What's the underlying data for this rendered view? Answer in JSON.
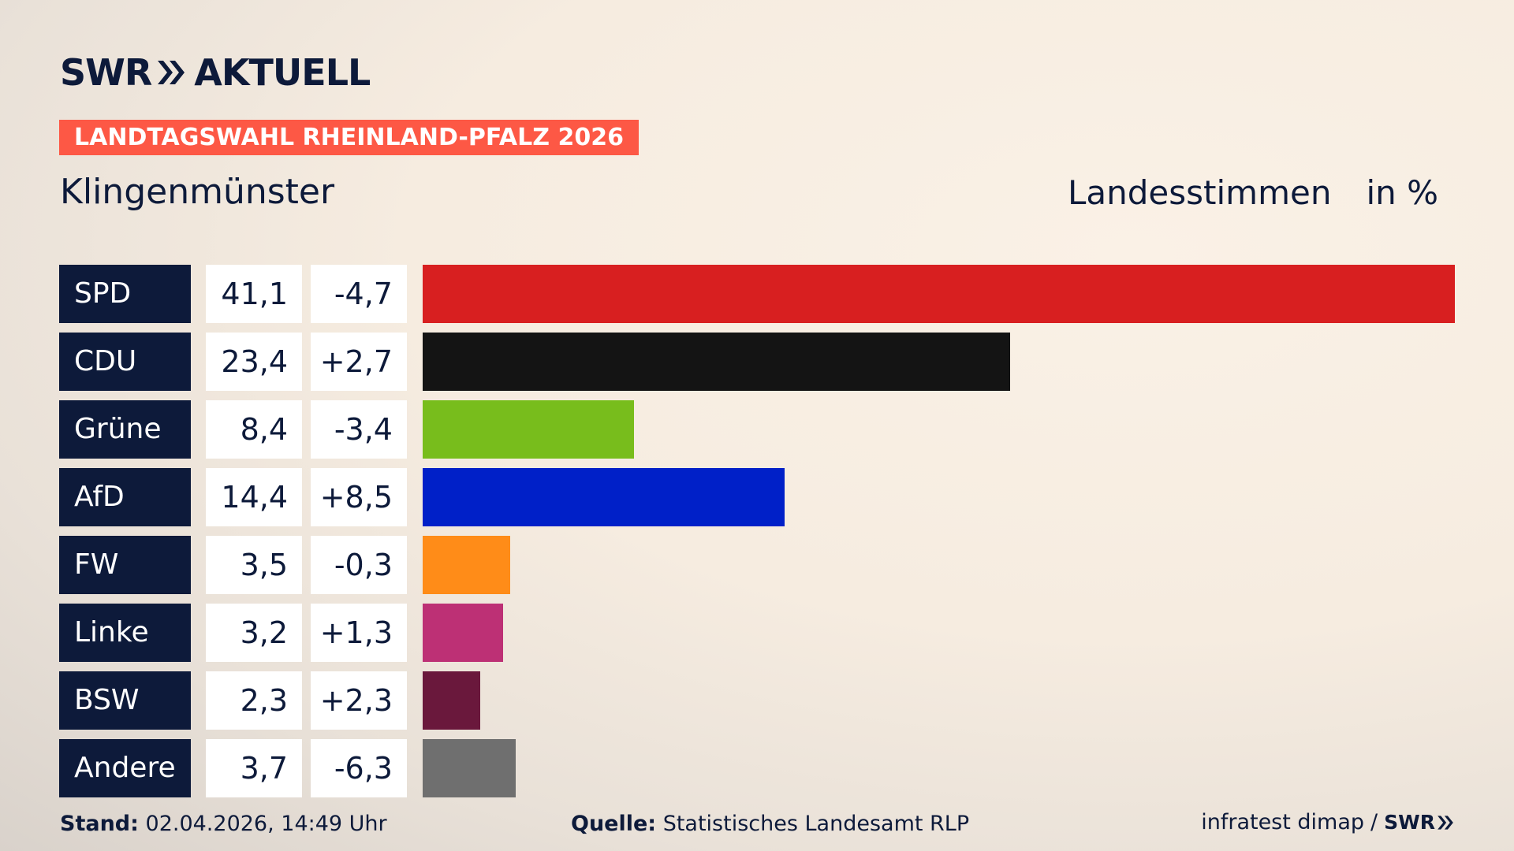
{
  "brand": {
    "left": "SWR",
    "right": "AKTUELL",
    "footer_logo": "SWR",
    "color_text": "#0d1a3a",
    "color_banner": "#fd5845"
  },
  "header": {
    "banner": "LANDTAGSWAHL RHEINLAND-PFALZ 2026",
    "place": "Klingenmünster",
    "measure": "Landesstimmen",
    "unit": "in %"
  },
  "chart_data": {
    "type": "bar",
    "orientation": "horizontal",
    "categories": [
      "SPD",
      "CDU",
      "Grüne",
      "AfD",
      "FW",
      "Linke",
      "BSW",
      "Andere"
    ],
    "values": [
      41.1,
      23.4,
      8.4,
      14.4,
      3.5,
      3.2,
      2.3,
      3.7
    ],
    "value_labels": [
      "41,1",
      "23,4",
      "8,4",
      "14,4",
      "3,5",
      "3,2",
      "2,3",
      "3,7"
    ],
    "change_labels": [
      "-4,7",
      "+2,7",
      "-3,4",
      "+8,5",
      "-0,3",
      "+1,3",
      "+2,3",
      "-6,3"
    ],
    "changes": [
      -4.7,
      2.7,
      -3.4,
      8.5,
      -0.3,
      1.3,
      2.3,
      -6.3
    ],
    "colors": [
      "#d81f20",
      "#141414",
      "#78bd1c",
      "#0020c8",
      "#ff8c18",
      "#bd3075",
      "#6a183c",
      "#6f6f6f"
    ],
    "xlim": [
      0,
      41.1
    ],
    "grid": false,
    "legend": "none"
  },
  "footer": {
    "stand_label": "Stand:",
    "stand_value": "02.04.2026, 14:49 Uhr",
    "source_label": "Quelle:",
    "source_value": "Statistisches Landesamt RLP",
    "credit": "infratest dimap",
    "separator": "/"
  }
}
